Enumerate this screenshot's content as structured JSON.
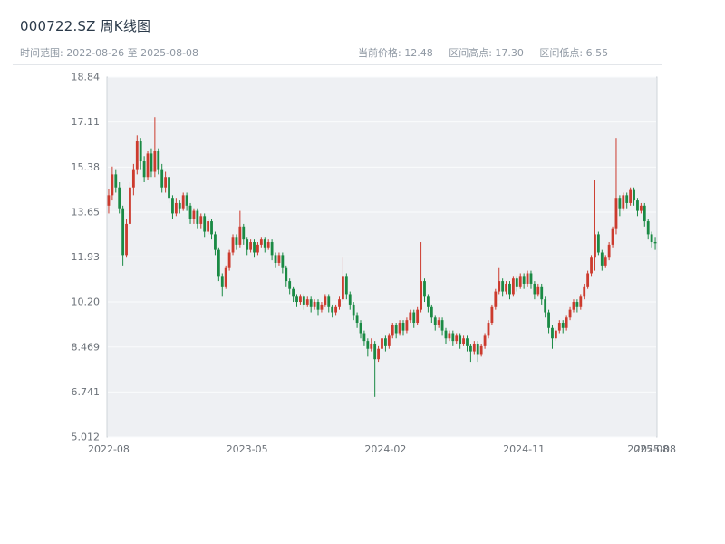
{
  "header": {
    "title": "000722.SZ 周K线图",
    "range_label": "时间范围: 2022-08-26 至 2025-08-08",
    "stats": [
      "当前价格: 12.48",
      "区间高点: 17.30",
      "区间低点: 6.55"
    ]
  },
  "chart_data": {
    "type": "candlestick",
    "title": "000722.SZ 周K线图",
    "symbol": "000722.SZ",
    "interval": "weekly",
    "date_range_start": "2022-08-26",
    "date_range_end": "2025-08-08",
    "current_price": 12.48,
    "range_high": 17.3,
    "range_low": 6.55,
    "ylim": [
      5.012,
      18.84
    ],
    "y_tick_labels": [
      "18.84",
      "17.11",
      "15.38",
      "13.65",
      "11.93",
      "10.20",
      "8.469",
      "6.741",
      "5.012"
    ],
    "x_ticks": [
      {
        "label": "2022-08",
        "index": 0
      },
      {
        "label": "2023-05",
        "index": 39
      },
      {
        "label": "2024-02",
        "index": 78
      },
      {
        "label": "2024-11",
        "index": 117
      },
      {
        "label": "2025-08",
        "index": 152
      },
      {
        "label": "2025-08",
        "index": 154
      }
    ],
    "colors": {
      "up": "#cc3b2e",
      "down": "#1a8a44",
      "panel": "#eef0f3",
      "grid": "#fafbfc",
      "border": "#cfd4da",
      "axis_text": "#6b7178"
    },
    "grid": true,
    "legend": false,
    "candles": [
      [
        13.9,
        14.55,
        13.6,
        14.3
      ],
      [
        14.3,
        15.4,
        14.1,
        15.1
      ],
      [
        15.1,
        15.3,
        14.4,
        14.6
      ],
      [
        14.6,
        14.8,
        13.6,
        13.8
      ],
      [
        13.8,
        13.9,
        11.6,
        12.0
      ],
      [
        12.0,
        13.4,
        11.9,
        13.2
      ],
      [
        13.2,
        14.8,
        13.1,
        14.6
      ],
      [
        14.6,
        15.5,
        14.3,
        15.3
      ],
      [
        15.3,
        16.6,
        15.1,
        16.4
      ],
      [
        16.4,
        16.5,
        15.3,
        15.6
      ],
      [
        15.6,
        15.8,
        14.8,
        15.0
      ],
      [
        15.0,
        16.0,
        14.9,
        15.9
      ],
      [
        15.9,
        16.1,
        15.0,
        15.2
      ],
      [
        15.2,
        17.3,
        15.0,
        16.0
      ],
      [
        16.0,
        16.1,
        15.1,
        15.3
      ],
      [
        15.3,
        15.5,
        14.4,
        14.6
      ],
      [
        14.6,
        15.2,
        14.4,
        15.0
      ],
      [
        15.0,
        15.1,
        14.0,
        14.2
      ],
      [
        14.2,
        14.3,
        13.4,
        13.6
      ],
      [
        13.6,
        14.2,
        13.5,
        14.0
      ],
      [
        14.0,
        14.1,
        13.6,
        13.8
      ],
      [
        13.8,
        14.4,
        13.7,
        14.3
      ],
      [
        14.3,
        14.4,
        13.7,
        13.9
      ],
      [
        13.9,
        14.0,
        13.2,
        13.4
      ],
      [
        13.4,
        13.8,
        13.2,
        13.7
      ],
      [
        13.7,
        13.8,
        13.0,
        13.2
      ],
      [
        13.2,
        13.6,
        13.0,
        13.5
      ],
      [
        13.5,
        13.6,
        12.7,
        12.9
      ],
      [
        12.9,
        13.4,
        12.8,
        13.3
      ],
      [
        13.3,
        13.4,
        12.6,
        12.8
      ],
      [
        12.8,
        12.9,
        12.0,
        12.2
      ],
      [
        12.2,
        12.3,
        11.0,
        11.2
      ],
      [
        11.2,
        11.3,
        10.4,
        10.8
      ],
      [
        10.8,
        11.6,
        10.7,
        11.5
      ],
      [
        11.5,
        12.2,
        11.4,
        12.1
      ],
      [
        12.1,
        12.8,
        12.0,
        12.7
      ],
      [
        12.7,
        12.8,
        12.2,
        12.4
      ],
      [
        12.4,
        13.7,
        12.3,
        13.1
      ],
      [
        13.1,
        13.2,
        12.4,
        12.6
      ],
      [
        12.6,
        12.7,
        12.0,
        12.2
      ],
      [
        12.2,
        12.6,
        12.1,
        12.5
      ],
      [
        12.5,
        12.6,
        11.9,
        12.1
      ],
      [
        12.1,
        12.5,
        12.0,
        12.4
      ],
      [
        12.4,
        12.7,
        12.3,
        12.6
      ],
      [
        12.6,
        12.7,
        12.1,
        12.3
      ],
      [
        12.3,
        12.6,
        12.2,
        12.5
      ],
      [
        12.5,
        12.6,
        11.8,
        12.0
      ],
      [
        12.0,
        12.1,
        11.5,
        11.7
      ],
      [
        11.7,
        12.1,
        11.6,
        12.0
      ],
      [
        12.0,
        12.1,
        11.3,
        11.5
      ],
      [
        11.5,
        11.6,
        10.8,
        11.0
      ],
      [
        11.0,
        11.1,
        10.5,
        10.7
      ],
      [
        10.7,
        10.8,
        10.2,
        10.4
      ],
      [
        10.4,
        10.5,
        10.0,
        10.2
      ],
      [
        10.2,
        10.5,
        10.1,
        10.4
      ],
      [
        10.4,
        10.5,
        9.9,
        10.1
      ],
      [
        10.1,
        10.4,
        10.0,
        10.3
      ],
      [
        10.3,
        10.4,
        9.8,
        10.0
      ],
      [
        10.0,
        10.3,
        9.9,
        10.2
      ],
      [
        10.2,
        10.3,
        9.7,
        9.9
      ],
      [
        9.9,
        10.2,
        9.8,
        10.1
      ],
      [
        10.1,
        10.5,
        10.0,
        10.4
      ],
      [
        10.4,
        10.5,
        9.8,
        10.0
      ],
      [
        10.0,
        10.1,
        9.6,
        9.8
      ],
      [
        9.8,
        10.1,
        9.7,
        10.0
      ],
      [
        10.0,
        10.4,
        9.9,
        10.3
      ],
      [
        10.3,
        11.9,
        10.2,
        11.2
      ],
      [
        11.2,
        11.3,
        10.3,
        10.5
      ],
      [
        10.5,
        10.6,
        9.9,
        10.1
      ],
      [
        10.1,
        10.2,
        9.5,
        9.7
      ],
      [
        9.7,
        9.8,
        9.2,
        9.4
      ],
      [
        9.4,
        9.5,
        8.8,
        9.0
      ],
      [
        9.0,
        9.1,
        8.5,
        8.7
      ],
      [
        8.7,
        8.8,
        8.1,
        8.4
      ],
      [
        8.4,
        8.8,
        8.3,
        8.6
      ],
      [
        8.6,
        8.7,
        6.55,
        8.0
      ],
      [
        8.0,
        8.5,
        7.9,
        8.4
      ],
      [
        8.4,
        8.9,
        8.3,
        8.8
      ],
      [
        8.8,
        8.9,
        8.3,
        8.5
      ],
      [
        8.5,
        9.0,
        8.4,
        8.9
      ],
      [
        8.9,
        9.4,
        8.8,
        9.3
      ],
      [
        9.3,
        9.4,
        8.8,
        9.0
      ],
      [
        9.0,
        9.5,
        8.9,
        9.4
      ],
      [
        9.4,
        9.5,
        8.9,
        9.1
      ],
      [
        9.1,
        9.6,
        9.0,
        9.5
      ],
      [
        9.5,
        9.9,
        9.4,
        9.8
      ],
      [
        9.8,
        9.9,
        9.2,
        9.4
      ],
      [
        9.4,
        10.0,
        9.3,
        9.9
      ],
      [
        9.9,
        12.5,
        9.8,
        11.0
      ],
      [
        11.0,
        11.1,
        10.2,
        10.4
      ],
      [
        10.4,
        10.5,
        9.8,
        10.0
      ],
      [
        10.0,
        10.1,
        9.4,
        9.6
      ],
      [
        9.6,
        9.7,
        9.1,
        9.3
      ],
      [
        9.3,
        9.6,
        9.2,
        9.5
      ],
      [
        9.5,
        9.6,
        8.9,
        9.1
      ],
      [
        9.1,
        9.2,
        8.6,
        8.8
      ],
      [
        8.8,
        9.1,
        8.7,
        9.0
      ],
      [
        9.0,
        9.1,
        8.5,
        8.7
      ],
      [
        8.7,
        9.0,
        8.6,
        8.9
      ],
      [
        8.9,
        9.0,
        8.4,
        8.6
      ],
      [
        8.6,
        8.9,
        8.5,
        8.8
      ],
      [
        8.8,
        8.9,
        8.3,
        8.5
      ],
      [
        8.5,
        8.6,
        7.9,
        8.3
      ],
      [
        8.3,
        8.7,
        8.2,
        8.6
      ],
      [
        8.6,
        8.7,
        7.9,
        8.2
      ],
      [
        8.2,
        8.6,
        8.1,
        8.5
      ],
      [
        8.5,
        9.0,
        8.4,
        8.9
      ],
      [
        8.9,
        9.5,
        8.8,
        9.4
      ],
      [
        9.4,
        10.1,
        9.3,
        10.0
      ],
      [
        10.0,
        10.7,
        9.9,
        10.6
      ],
      [
        10.6,
        11.5,
        10.5,
        11.0
      ],
      [
        11.0,
        11.1,
        10.4,
        10.6
      ],
      [
        10.6,
        11.0,
        10.5,
        10.9
      ],
      [
        10.9,
        11.0,
        10.3,
        10.5
      ],
      [
        10.5,
        11.2,
        10.4,
        11.1
      ],
      [
        11.1,
        11.2,
        10.6,
        10.8
      ],
      [
        10.8,
        11.3,
        10.7,
        11.2
      ],
      [
        11.2,
        11.3,
        10.7,
        10.9
      ],
      [
        10.9,
        11.4,
        10.8,
        11.3
      ],
      [
        11.3,
        11.4,
        10.7,
        10.9
      ],
      [
        10.9,
        11.0,
        10.3,
        10.5
      ],
      [
        10.5,
        10.9,
        10.4,
        10.8
      ],
      [
        10.8,
        10.9,
        10.1,
        10.3
      ],
      [
        10.3,
        10.4,
        9.6,
        9.8
      ],
      [
        9.8,
        9.9,
        9.0,
        9.2
      ],
      [
        9.2,
        9.3,
        8.4,
        8.8
      ],
      [
        8.8,
        9.2,
        8.7,
        9.1
      ],
      [
        9.1,
        9.5,
        9.0,
        9.4
      ],
      [
        9.4,
        9.5,
        9.0,
        9.2
      ],
      [
        9.2,
        9.7,
        9.1,
        9.6
      ],
      [
        9.6,
        10.0,
        9.5,
        9.9
      ],
      [
        9.9,
        10.3,
        9.8,
        10.2
      ],
      [
        10.2,
        10.3,
        9.8,
        10.0
      ],
      [
        10.0,
        10.5,
        9.9,
        10.4
      ],
      [
        10.4,
        10.9,
        10.3,
        10.8
      ],
      [
        10.8,
        11.4,
        10.7,
        11.3
      ],
      [
        11.3,
        12.0,
        11.2,
        11.9
      ],
      [
        11.9,
        14.9,
        11.4,
        12.8
      ],
      [
        12.8,
        12.9,
        12.0,
        12.1
      ],
      [
        12.1,
        12.2,
        11.4,
        11.6
      ],
      [
        11.6,
        12.0,
        11.5,
        11.9
      ],
      [
        11.9,
        12.5,
        11.8,
        12.4
      ],
      [
        12.4,
        13.1,
        12.3,
        13.0
      ],
      [
        13.0,
        16.5,
        12.8,
        14.2
      ],
      [
        14.2,
        14.3,
        13.5,
        13.8
      ],
      [
        13.8,
        14.4,
        13.7,
        14.3
      ],
      [
        14.3,
        14.4,
        13.8,
        14.0
      ],
      [
        14.0,
        14.6,
        13.9,
        14.5
      ],
      [
        14.5,
        14.6,
        13.9,
        14.1
      ],
      [
        14.1,
        14.2,
        13.5,
        13.7
      ],
      [
        13.7,
        14.0,
        13.6,
        13.9
      ],
      [
        13.9,
        14.0,
        13.1,
        13.3
      ],
      [
        13.3,
        13.4,
        12.6,
        12.8
      ],
      [
        12.8,
        12.9,
        12.3,
        12.5
      ],
      [
        12.5,
        12.7,
        12.2,
        12.48
      ]
    ]
  }
}
